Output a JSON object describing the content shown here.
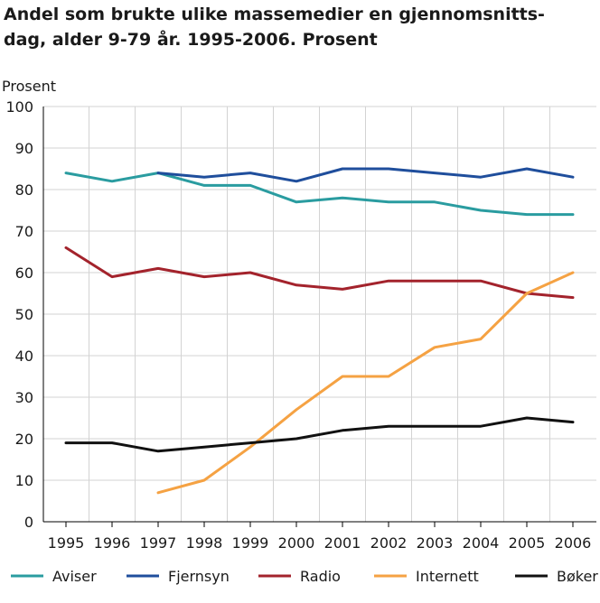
{
  "chart_data": {
    "type": "line",
    "title": "Andel som brukte ulike massemedier en gjennomsnitts-\ndag, alder 9-79 år. 1995-2006. Prosent",
    "ylabel": "Prosent",
    "xlabel": "",
    "ylim": [
      0,
      100
    ],
    "yticks": [
      0,
      10,
      20,
      30,
      40,
      50,
      60,
      70,
      80,
      90,
      100
    ],
    "grid": true,
    "legend_position": "bottom",
    "x": [
      "1995",
      "1996",
      "1997",
      "1998",
      "1999",
      "2000",
      "2001",
      "2002",
      "2003",
      "2004",
      "2005",
      "2006"
    ],
    "series": [
      {
        "name": "Aviser",
        "color": "#2a9ca0",
        "values": [
          84,
          82,
          84,
          81,
          81,
          77,
          78,
          77,
          77,
          75,
          74,
          74
        ]
      },
      {
        "name": "Fjernsyn",
        "color": "#1f4e9c",
        "values": [
          null,
          null,
          84,
          83,
          84,
          82,
          85,
          85,
          84,
          83,
          85,
          83
        ]
      },
      {
        "name": "Radio",
        "color": "#a3232c",
        "values": [
          66,
          59,
          61,
          59,
          60,
          57,
          56,
          58,
          58,
          58,
          55,
          54
        ]
      },
      {
        "name": "Internett",
        "color": "#f5a243",
        "values": [
          null,
          null,
          7,
          10,
          18,
          27,
          35,
          35,
          42,
          44,
          55,
          60
        ]
      },
      {
        "name": "Bøker",
        "color": "#111111",
        "values": [
          19,
          19,
          17,
          18,
          19,
          20,
          22,
          23,
          23,
          23,
          25,
          24
        ]
      }
    ]
  }
}
